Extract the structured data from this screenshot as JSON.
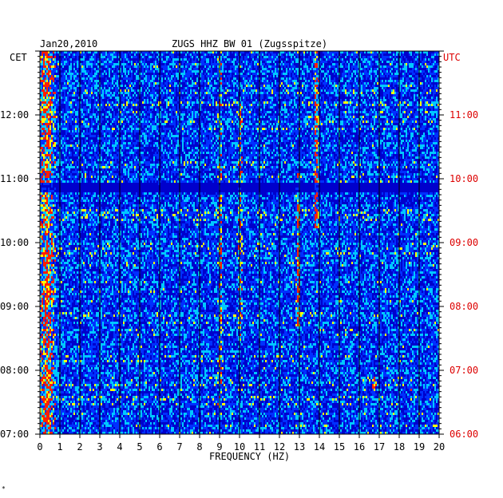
{
  "chart_data": {
    "type": "heatmap",
    "date": "Jan20,2010",
    "title": "ZUGS HHZ BW 01 (Zugsspitze)",
    "xlabel": "FREQUENCY (HZ)",
    "xlim": [
      0,
      20
    ],
    "x_ticks": [
      "0",
      "1",
      "2",
      "3",
      "4",
      "5",
      "6",
      "7",
      "8",
      "9",
      "10",
      "11",
      "12",
      "13",
      "14",
      "15",
      "16",
      "17",
      "18",
      "19",
      "20"
    ],
    "left_axis": {
      "label": "CET",
      "ticks": [
        {
          "time_hours": 12,
          "label": "12:00"
        },
        {
          "time_hours": 11,
          "label": "11:00"
        },
        {
          "time_hours": 10,
          "label": "10:00"
        },
        {
          "time_hours": 9,
          "label": "09:00"
        },
        {
          "time_hours": 8,
          "label": "08:00"
        },
        {
          "time_hours": 7,
          "label": "07:00"
        }
      ]
    },
    "right_axis": {
      "label": "UTC",
      "ticks": [
        {
          "time_hours": 12,
          "label": "11:00"
        },
        {
          "time_hours": 11,
          "label": "10:00"
        },
        {
          "time_hours": 10,
          "label": "09:00"
        },
        {
          "time_hours": 9,
          "label": "08:00"
        },
        {
          "time_hours": 8,
          "label": "07:00"
        },
        {
          "time_hours": 7,
          "label": "06:00"
        }
      ]
    },
    "ylim_hours": [
      7,
      13
    ],
    "grid": true,
    "colors": {
      "background": "#0000cc",
      "low": "#0030ff",
      "mid": "#00c8ff",
      "high": "#ffff00",
      "peak": "#ff2000",
      "grid": "#000000",
      "utc_text": "#dd0000"
    },
    "features": [
      {
        "freq_hz": 0.3,
        "time_range_hours": [
          7,
          13
        ],
        "intensity": "high"
      },
      {
        "freq_hz": 9.0,
        "time_range_hours": [
          7.4,
          13
        ],
        "intensity": "medium"
      },
      {
        "freq_hz": 10.0,
        "time_range_hours": [
          8.5,
          12.2
        ],
        "intensity": "medium"
      },
      {
        "freq_hz": 12.9,
        "time_range_hours": [
          8.7,
          11.1
        ],
        "intensity": "high"
      },
      {
        "freq_hz": 13.8,
        "time_range_hours": [
          10.2,
          13
        ],
        "intensity": "high"
      },
      {
        "freq_hz": 16.7,
        "time_range_hours": [
          7.7,
          7.9
        ],
        "intensity": "high"
      },
      {
        "freq_hz": 18.6,
        "time_range_hours": [
          7.7,
          7.9
        ],
        "intensity": "medium"
      }
    ],
    "quiet_bands_hours": [
      10.8,
      10.95
    ]
  },
  "footer_mark": "*"
}
